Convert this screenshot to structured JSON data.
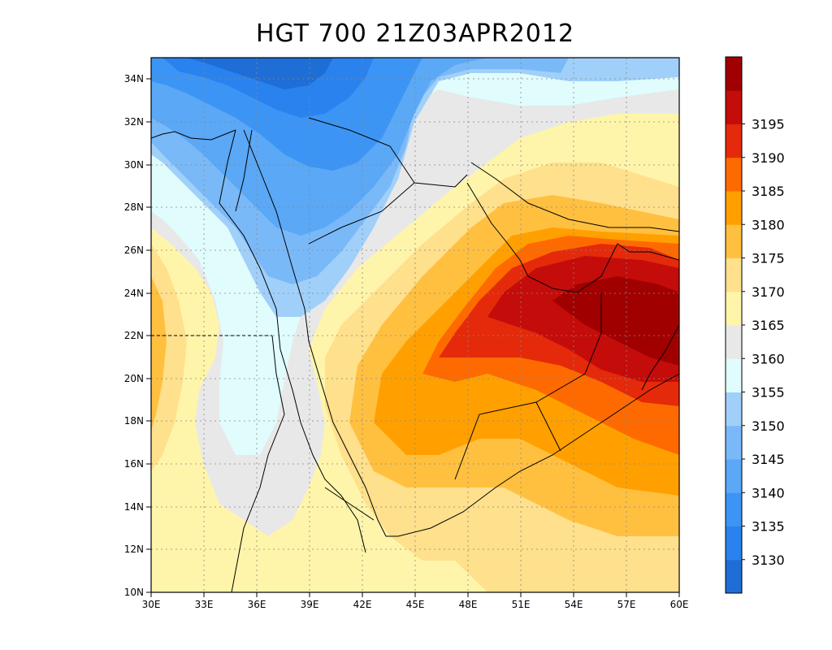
{
  "title": "HGT 700 21Z03APR2012",
  "x_ticks": [
    "30E",
    "33E",
    "36E",
    "39E",
    "42E",
    "45E",
    "48E",
    "51E",
    "54E",
    "57E",
    "60E"
  ],
  "y_ticks": [
    "10N",
    "12N",
    "14N",
    "16N",
    "18N",
    "20N",
    "22N",
    "24N",
    "26N",
    "28N",
    "30N",
    "32N",
    "34N"
  ],
  "colorbar": {
    "labels": [
      "3130",
      "3135",
      "3140",
      "3145",
      "3150",
      "3155",
      "3160",
      "3165",
      "3170",
      "3175",
      "3180",
      "3185",
      "3190",
      "3195"
    ],
    "colors": [
      "#1e6ed6",
      "#2a82ee",
      "#3c95f4",
      "#5aa8f6",
      "#7ab9f8",
      "#a0d0fa",
      "#e0fcfc",
      "#e8e8e8",
      "#fff5aa",
      "#ffe08c",
      "#ffc040",
      "#ffa000",
      "#ff6a00",
      "#e42a0a",
      "#c40c0a",
      "#a00000"
    ]
  }
}
